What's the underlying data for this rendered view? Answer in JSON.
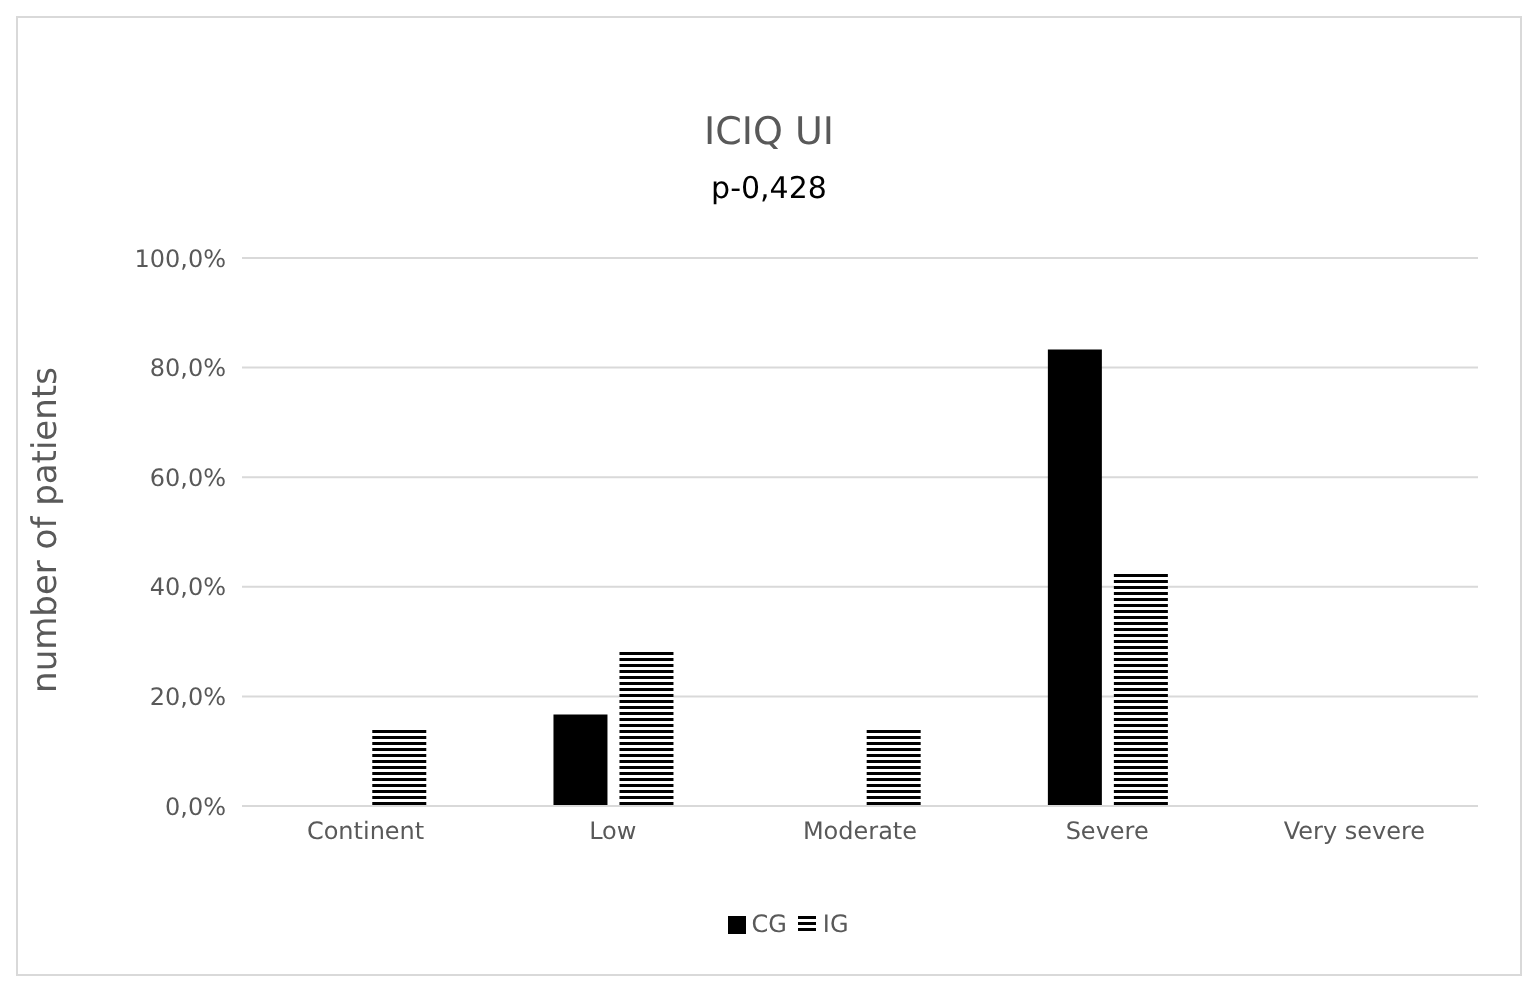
{
  "chart_data": {
    "type": "bar",
    "title": "ICIQ UI",
    "subtitle": "p-0,428",
    "ylabel": "number of patients",
    "categories": [
      "Continent",
      "Low",
      "Moderate",
      "Severe",
      "Very severe"
    ],
    "series": [
      {
        "name": "CG",
        "color": "#000000",
        "values": [
          0,
          16.7,
          0,
          83.3,
          0
        ]
      },
      {
        "name": "IG",
        "color": "#000000",
        "values": [
          14.3,
          28.6,
          14.3,
          42.9,
          0
        ]
      }
    ],
    "ylim": [
      0,
      100
    ],
    "yticks": [
      {
        "value": 0,
        "label": "0,0%"
      },
      {
        "value": 20,
        "label": "20,0%"
      },
      {
        "value": 40,
        "label": "40,0%"
      },
      {
        "value": 60,
        "label": "60,0%"
      },
      {
        "value": 80,
        "label": "80,0%"
      },
      {
        "value": 100,
        "label": "100,0%"
      }
    ],
    "grid": "y",
    "legend": "bottom"
  }
}
